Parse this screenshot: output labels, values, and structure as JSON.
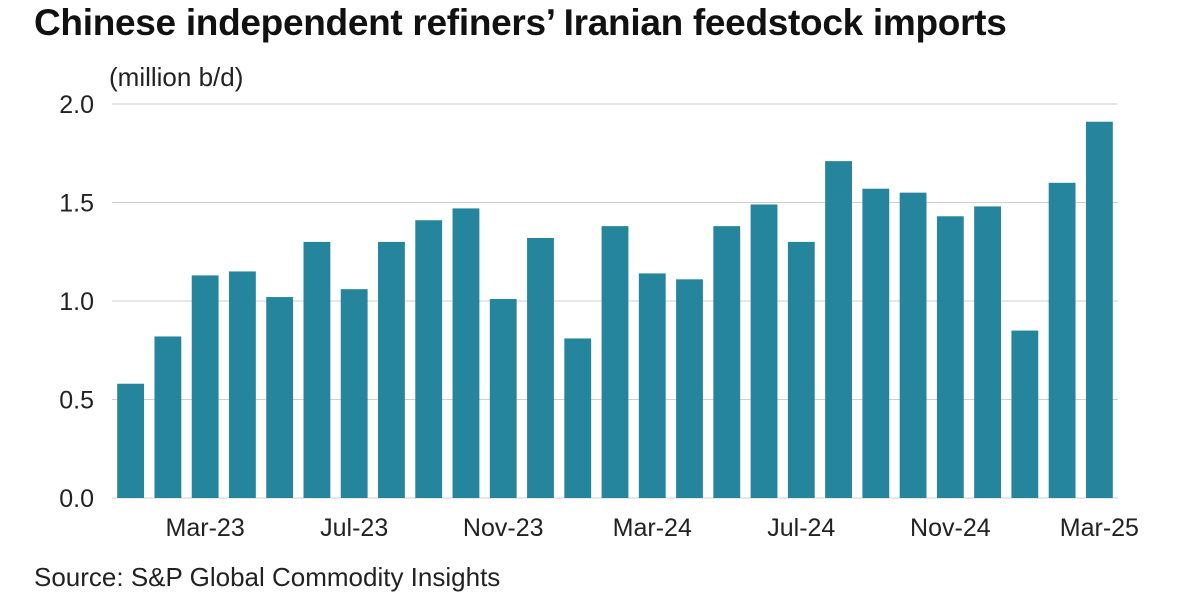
{
  "chart_data": {
    "type": "bar",
    "title": "Chinese independent refiners’ Iranian feedstock imports",
    "unit_label": "(million b/d)",
    "xlabel": "",
    "ylabel": "(million b/d)",
    "ylim": [
      0,
      2
    ],
    "yticks": [
      {
        "value": 0,
        "label": "0.0"
      },
      {
        "value": 0.5,
        "label": "0.5"
      },
      {
        "value": 1,
        "label": "1.0"
      },
      {
        "value": 1.5,
        "label": "1.5"
      },
      {
        "value": 2,
        "label": "2.0"
      }
    ],
    "grid": true,
    "categories": [
      "Jan-23",
      "Feb-23",
      "Mar-23",
      "Apr-23",
      "May-23",
      "Jun-23",
      "Jul-23",
      "Aug-23",
      "Sep-23",
      "Oct-23",
      "Nov-23",
      "Dec-23",
      "Jan-24",
      "Feb-24",
      "Mar-24",
      "Apr-24",
      "May-24",
      "Jun-24",
      "Jul-24",
      "Aug-24",
      "Sep-24",
      "Oct-24",
      "Nov-24",
      "Dec-24",
      "Jan-25",
      "Feb-25",
      "Mar-25"
    ],
    "values": [
      0.58,
      0.82,
      1.13,
      1.15,
      1.02,
      1.3,
      1.06,
      1.3,
      1.41,
      1.47,
      1.01,
      1.32,
      0.81,
      1.38,
      1.14,
      1.11,
      1.38,
      1.49,
      1.3,
      1.71,
      1.57,
      1.55,
      1.43,
      1.48,
      0.85,
      1.6,
      1.91
    ],
    "xticks": [
      {
        "category": "Mar-23",
        "label": "Mar-23"
      },
      {
        "category": "Jul-23",
        "label": "Jul-23"
      },
      {
        "category": "Nov-23",
        "label": "Nov-23"
      },
      {
        "category": "Mar-24",
        "label": "Mar-24"
      },
      {
        "category": "Jul-24",
        "label": "Jul-24"
      },
      {
        "category": "Nov-24",
        "label": "Nov-24"
      },
      {
        "category": "Mar-25",
        "label": "Mar-25"
      }
    ],
    "bar_color": "#25859c",
    "grid_color": "#cfcfcf",
    "source": "Source: S&P Global Commodity Insights"
  }
}
